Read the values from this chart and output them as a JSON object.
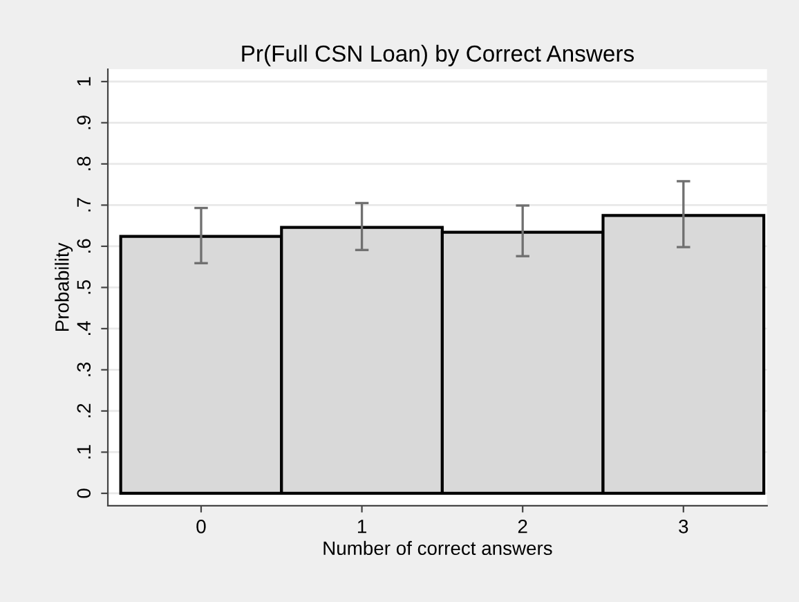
{
  "chart_data": {
    "type": "bar",
    "title": "Pr(Full CSN Loan) by Correct Answers",
    "xlabel": "Number of correct answers",
    "ylabel": "Probability",
    "categories": [
      "0",
      "1",
      "2",
      "3"
    ],
    "values": [
      0.624,
      0.646,
      0.634,
      0.675
    ],
    "errors": [
      [
        0.559,
        0.693
      ],
      [
        0.591,
        0.705
      ],
      [
        0.576,
        0.699
      ],
      [
        0.598,
        0.758
      ]
    ],
    "color": "#d9d9d9",
    "ylim": [
      -0.03,
      1.03
    ],
    "yticks": [
      0,
      {
        "value": 0.1,
        "label": ".1"
      },
      {
        "value": 0.2,
        "label": ".2"
      },
      {
        "value": 0.3,
        "label": ".3"
      },
      {
        "value": 0.4,
        "label": ".4"
      },
      {
        "value": 0.5,
        "label": ".5"
      },
      {
        "value": 0.6,
        "label": ".6"
      },
      {
        "value": 0.7,
        "label": ".7"
      },
      {
        "value": 0.8,
        "label": ".8"
      },
      {
        "value": 0.9,
        "label": ".9"
      },
      1
    ],
    "grid": "y"
  }
}
